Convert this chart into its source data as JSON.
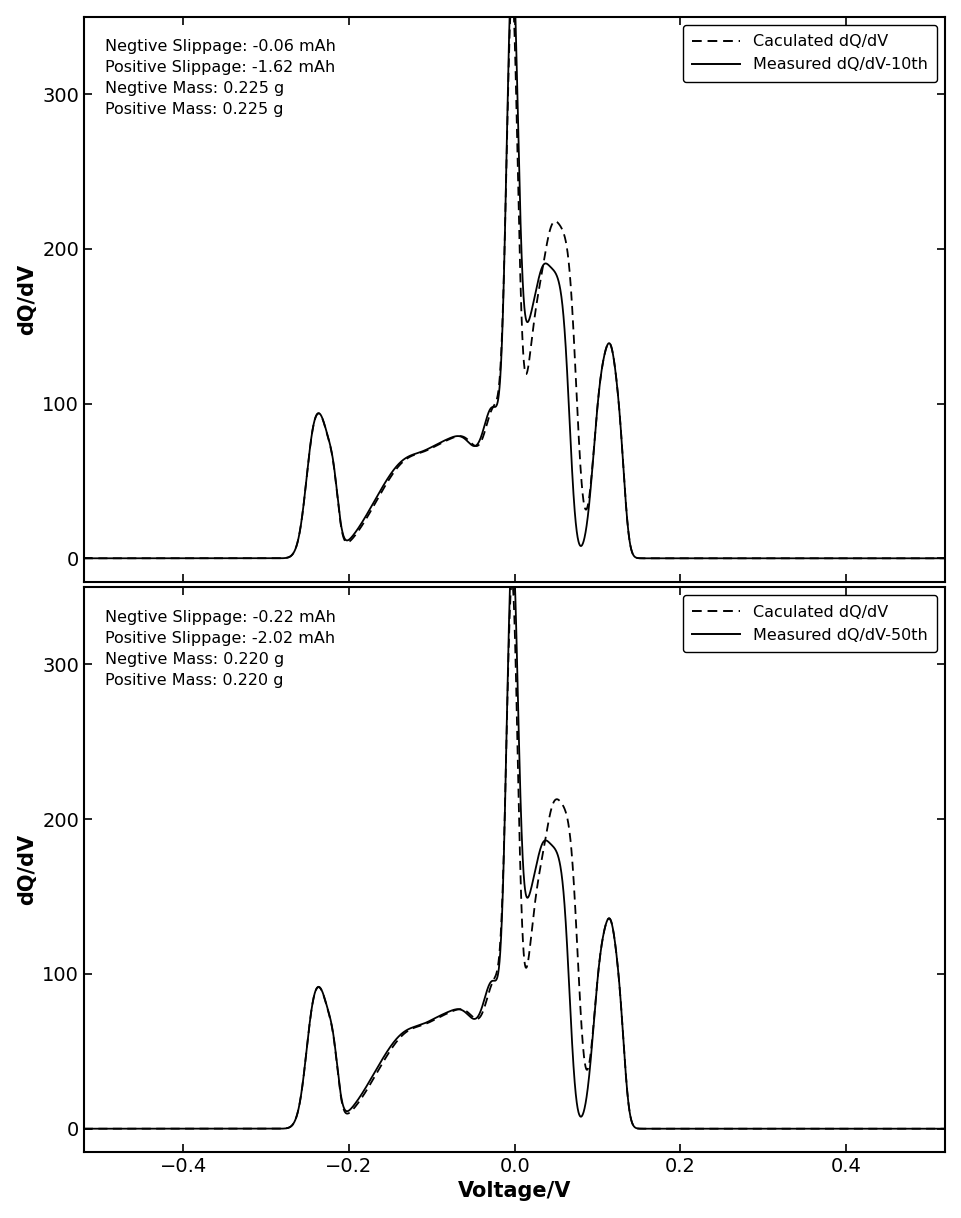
{
  "subplot1": {
    "annotation": "Negtive Slippage: -0.06 mAh\nPositive Slippage: -1.62 mAh\nNegtive Mass: 0.225 g\nPositive Mass: 0.225 g",
    "legend_calculated": "Caculated dQ/dV",
    "legend_measured": "Measured dQ/dV-10th",
    "calc_shift": 0.008
  },
  "subplot2": {
    "annotation": "Negtive Slippage: -0.22 mAh\nPositive Slippage: -2.02 mAh\nNegtive Mass: 0.220 g\nPositive Mass: 0.220 g",
    "legend_calculated": "Caculated dQ/dV",
    "legend_measured": "Measured dQ/dV-50th",
    "calc_shift": 0.01
  },
  "xlabel": "Voltage/V",
  "ylabel": "dQ/dV",
  "xlim": [
    -0.52,
    0.52
  ],
  "ylim": [
    -15,
    350
  ],
  "xticks": [
    -0.4,
    -0.2,
    0.0,
    0.2,
    0.4
  ],
  "yticks": [
    0,
    100,
    200,
    300
  ],
  "line_color": "#000000",
  "bg_color": "#ffffff"
}
